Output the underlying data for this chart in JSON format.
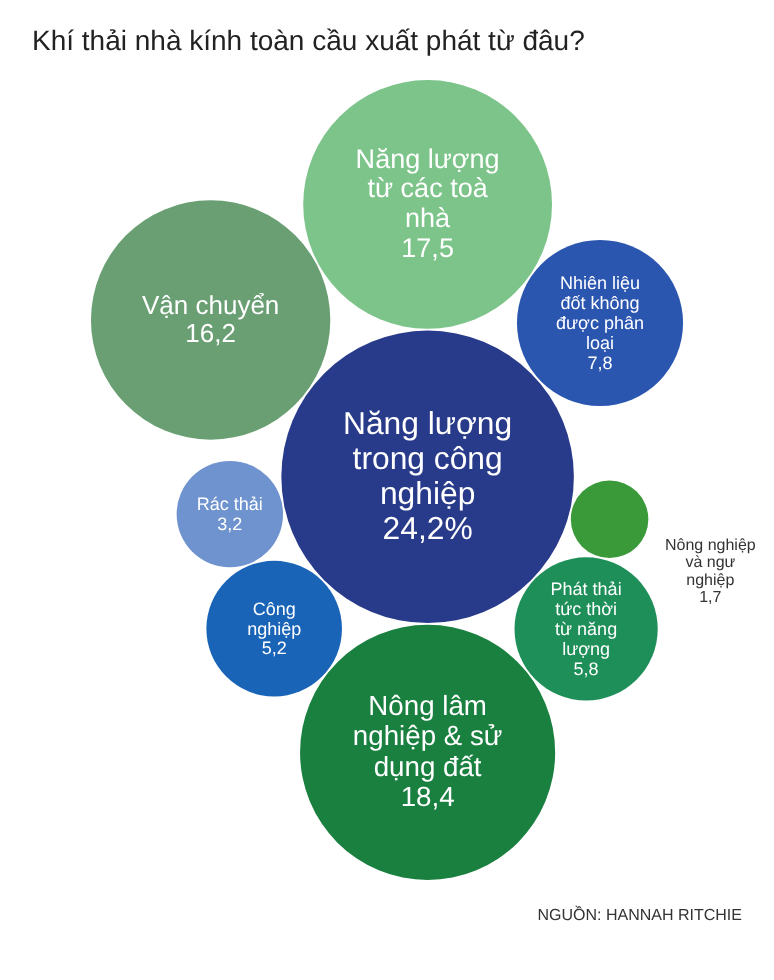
{
  "chart_data": {
    "type": "other",
    "title": "Khí thải nhà kính toàn cầu xuất phát từ đâu?",
    "categories": [
      "Năng lượng trong công nghiệp",
      "Nông lâm nghiệp & sử dụng đất",
      "Năng lượng từ các toà nhà",
      "Vận chuyển",
      "Nhiên liệu đốt không được phân loại",
      "Phát thải tức thời từ năng lượng",
      "Công nghiệp",
      "Rác thải",
      "Nông nghiệp và ngư nghiệp"
    ],
    "values": [
      24.2,
      18.4,
      17.5,
      16.2,
      7.8,
      5.8,
      5.2,
      3.2,
      1.7
    ],
    "value_labels": [
      "24,2%",
      "18,4",
      "17,5",
      "16,2",
      "7,8",
      "5,8",
      "5,2",
      "3,2",
      "1,7"
    ],
    "colors": [
      "#283a8a",
      "#1a8040",
      "#7cc489",
      "#6a9f74",
      "#2b56b0",
      "#1f8f5a",
      "#1a64b8",
      "#6f93cf",
      "#3a9a3a"
    ],
    "annotations": [
      "NGUỒN: HANNAH RITCHIE"
    ]
  }
}
